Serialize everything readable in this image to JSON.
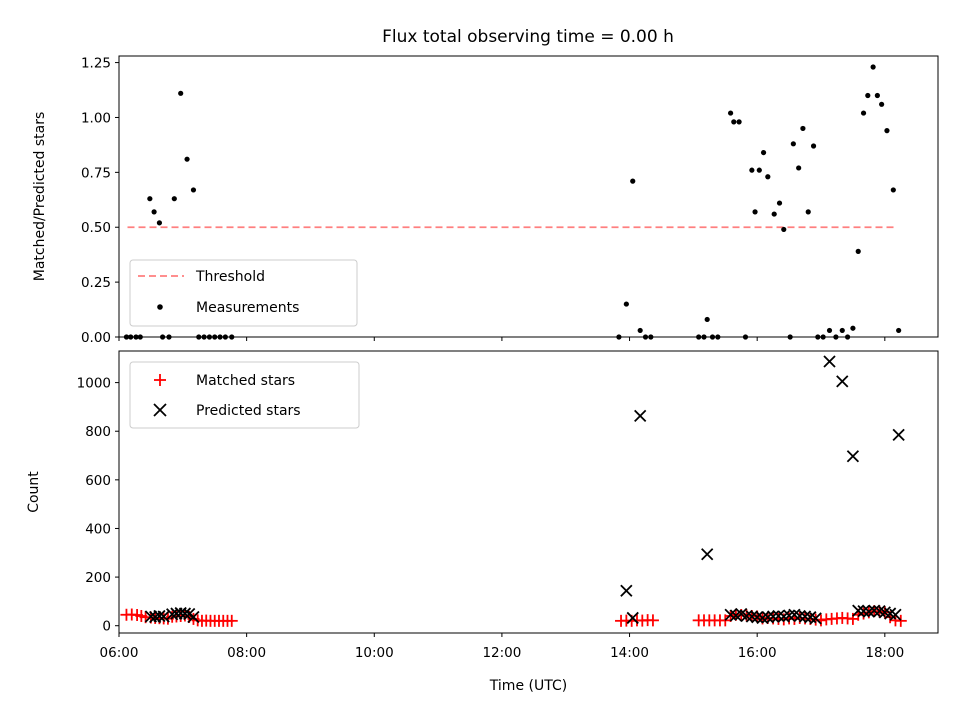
{
  "chart_data": [
    {
      "type": "scatter",
      "title": "Flux total observing time = 0.00 h",
      "xlabel": "",
      "ylabel": "Matched/Predicted stars",
      "xlim": [
        "06:00",
        "18:50"
      ],
      "ylim": [
        0,
        1.28
      ],
      "yticks": [
        "0.00",
        "0.25",
        "0.50",
        "0.75",
        "1.00",
        "1.25"
      ],
      "legend_position": "lower-left",
      "threshold": {
        "name": "Threshold",
        "value": 0.5,
        "x_start": "06:08",
        "x_end": "18:10",
        "color": "#ff7f7f",
        "style": "dashed"
      },
      "series": [
        {
          "name": "Measurements",
          "color": "#000000",
          "marker": "dot",
          "points": [
            [
              "06:07",
              0
            ],
            [
              "06:11",
              0
            ],
            [
              "06:16",
              0
            ],
            [
              "06:20",
              0
            ],
            [
              "06:29",
              0.63
            ],
            [
              "06:33",
              0.57
            ],
            [
              "06:38",
              0.52
            ],
            [
              "06:41",
              0
            ],
            [
              "06:47",
              0
            ],
            [
              "06:52",
              0.63
            ],
            [
              "06:58",
              1.11
            ],
            [
              "07:04",
              0.81
            ],
            [
              "07:10",
              0.67
            ],
            [
              "07:15",
              0
            ],
            [
              "07:20",
              0
            ],
            [
              "07:25",
              0
            ],
            [
              "07:30",
              0
            ],
            [
              "07:35",
              0
            ],
            [
              "07:40",
              0
            ],
            [
              "07:46",
              0
            ],
            [
              "13:50",
              0
            ],
            [
              "13:57",
              0.15
            ],
            [
              "14:03",
              0.71
            ],
            [
              "14:10",
              0.03
            ],
            [
              "14:15",
              0
            ],
            [
              "14:20",
              0
            ],
            [
              "15:05",
              0
            ],
            [
              "15:10",
              0
            ],
            [
              "15:13",
              0.08
            ],
            [
              "15:18",
              0
            ],
            [
              "15:23",
              0
            ],
            [
              "15:35",
              1.02
            ],
            [
              "15:38",
              0.98
            ],
            [
              "15:43",
              0.98
            ],
            [
              "15:49",
              0
            ],
            [
              "15:55",
              0.76
            ],
            [
              "15:58",
              0.57
            ],
            [
              "16:02",
              0.76
            ],
            [
              "16:06",
              0.84
            ],
            [
              "16:10",
              0.73
            ],
            [
              "16:16",
              0.56
            ],
            [
              "16:21",
              0.61
            ],
            [
              "16:25",
              0.49
            ],
            [
              "16:31",
              0
            ],
            [
              "16:34",
              0.88
            ],
            [
              "16:39",
              0.77
            ],
            [
              "16:43",
              0.95
            ],
            [
              "16:48",
              0.57
            ],
            [
              "16:53",
              0.87
            ],
            [
              "16:57",
              0
            ],
            [
              "17:02",
              0
            ],
            [
              "17:08",
              0.03
            ],
            [
              "17:14",
              0
            ],
            [
              "17:20",
              0.03
            ],
            [
              "17:25",
              0
            ],
            [
              "17:30",
              0.04
            ],
            [
              "17:35",
              0.39
            ],
            [
              "17:40",
              1.02
            ],
            [
              "17:44",
              1.1
            ],
            [
              "17:49",
              1.23
            ],
            [
              "17:53",
              1.1
            ],
            [
              "17:57",
              1.06
            ],
            [
              "18:02",
              0.94
            ],
            [
              "18:08",
              0.67
            ],
            [
              "18:13",
              0.03
            ]
          ]
        }
      ]
    },
    {
      "type": "scatter",
      "title": "",
      "xlabel": "Time (UTC)",
      "ylabel": "Count",
      "xlim": [
        "06:00",
        "18:50"
      ],
      "ylim": [
        -30,
        1130
      ],
      "yticks": [
        "0",
        "200",
        "400",
        "600",
        "800",
        "1000"
      ],
      "xticks": [
        "06:00",
        "08:00",
        "10:00",
        "12:00",
        "14:00",
        "16:00",
        "18:00"
      ],
      "legend_position": "upper-left",
      "series": [
        {
          "name": "Matched stars",
          "color": "#ff0000",
          "marker": "plus",
          "points": [
            [
              "06:07",
              45
            ],
            [
              "06:12",
              46
            ],
            [
              "06:17",
              44
            ],
            [
              "06:21",
              40
            ],
            [
              "06:25",
              35
            ],
            [
              "06:30",
              34
            ],
            [
              "06:34",
              32
            ],
            [
              "06:38",
              31
            ],
            [
              "06:42",
              30
            ],
            [
              "06:46",
              29
            ],
            [
              "06:50",
              37
            ],
            [
              "06:54",
              38
            ],
            [
              "06:58",
              40
            ],
            [
              "07:02",
              42
            ],
            [
              "07:06",
              36
            ],
            [
              "07:10",
              28
            ],
            [
              "07:14",
              22
            ],
            [
              "07:18",
              20
            ],
            [
              "07:22",
              21
            ],
            [
              "07:26",
              20
            ],
            [
              "07:30",
              20
            ],
            [
              "07:34",
              20
            ],
            [
              "07:38",
              20
            ],
            [
              "07:42",
              20
            ],
            [
              "07:46",
              20
            ],
            [
              "13:52",
              20
            ],
            [
              "13:57",
              21
            ],
            [
              "14:02",
              20
            ],
            [
              "14:07",
              22
            ],
            [
              "14:12",
              21
            ],
            [
              "14:17",
              23
            ],
            [
              "14:22",
              22
            ],
            [
              "15:05",
              22
            ],
            [
              "15:10",
              22
            ],
            [
              "15:15",
              22
            ],
            [
              "15:20",
              22
            ],
            [
              "15:25",
              22
            ],
            [
              "15:30",
              22
            ],
            [
              "15:35",
              40
            ],
            [
              "15:40",
              45
            ],
            [
              "15:45",
              44
            ],
            [
              "15:50",
              42
            ],
            [
              "15:55",
              40
            ],
            [
              "16:00",
              38
            ],
            [
              "16:05",
              30
            ],
            [
              "16:10",
              32
            ],
            [
              "16:15",
              30
            ],
            [
              "16:20",
              28
            ],
            [
              "16:25",
              26
            ],
            [
              "16:30",
              30
            ],
            [
              "16:35",
              28
            ],
            [
              "16:40",
              32
            ],
            [
              "16:45",
              30
            ],
            [
              "16:50",
              28
            ],
            [
              "16:55",
              25
            ],
            [
              "17:00",
              22
            ],
            [
              "17:05",
              26
            ],
            [
              "17:10",
              28
            ],
            [
              "17:15",
              30
            ],
            [
              "17:20",
              32
            ],
            [
              "17:25",
              30
            ],
            [
              "17:30",
              28
            ],
            [
              "17:35",
              45
            ],
            [
              "17:40",
              50
            ],
            [
              "17:45",
              55
            ],
            [
              "17:50",
              60
            ],
            [
              "17:55",
              58
            ],
            [
              "18:00",
              55
            ],
            [
              "18:05",
              35
            ],
            [
              "18:10",
              22
            ],
            [
              "18:15",
              20
            ]
          ]
        },
        {
          "name": "Predicted stars",
          "color": "#000000",
          "marker": "x",
          "points": [
            [
              "06:30",
              38
            ],
            [
              "06:34",
              36
            ],
            [
              "06:38",
              40
            ],
            [
              "06:42",
              38
            ],
            [
              "06:50",
              47
            ],
            [
              "06:54",
              50
            ],
            [
              "06:58",
              52
            ],
            [
              "07:02",
              50
            ],
            [
              "07:06",
              48
            ],
            [
              "07:10",
              36
            ],
            [
              "13:57",
              144
            ],
            [
              "14:03",
              32
            ],
            [
              "14:10",
              863
            ],
            [
              "15:13",
              294
            ],
            [
              "15:35",
              45
            ],
            [
              "15:40",
              42
            ],
            [
              "15:45",
              48
            ],
            [
              "15:50",
              40
            ],
            [
              "15:55",
              38
            ],
            [
              "16:00",
              35
            ],
            [
              "16:05",
              32
            ],
            [
              "16:10",
              35
            ],
            [
              "16:15",
              38
            ],
            [
              "16:20",
              40
            ],
            [
              "16:25",
              38
            ],
            [
              "16:30",
              42
            ],
            [
              "16:35",
              45
            ],
            [
              "16:40",
              40
            ],
            [
              "16:45",
              38
            ],
            [
              "16:50",
              35
            ],
            [
              "16:55",
              30
            ],
            [
              "17:08",
              1087
            ],
            [
              "17:20",
              1005
            ],
            [
              "17:30",
              697
            ],
            [
              "17:35",
              62
            ],
            [
              "17:40",
              60
            ],
            [
              "17:45",
              58
            ],
            [
              "17:50",
              62
            ],
            [
              "17:55",
              60
            ],
            [
              "18:00",
              55
            ],
            [
              "18:05",
              50
            ],
            [
              "18:10",
              45
            ],
            [
              "18:13",
              785
            ]
          ]
        }
      ]
    }
  ]
}
